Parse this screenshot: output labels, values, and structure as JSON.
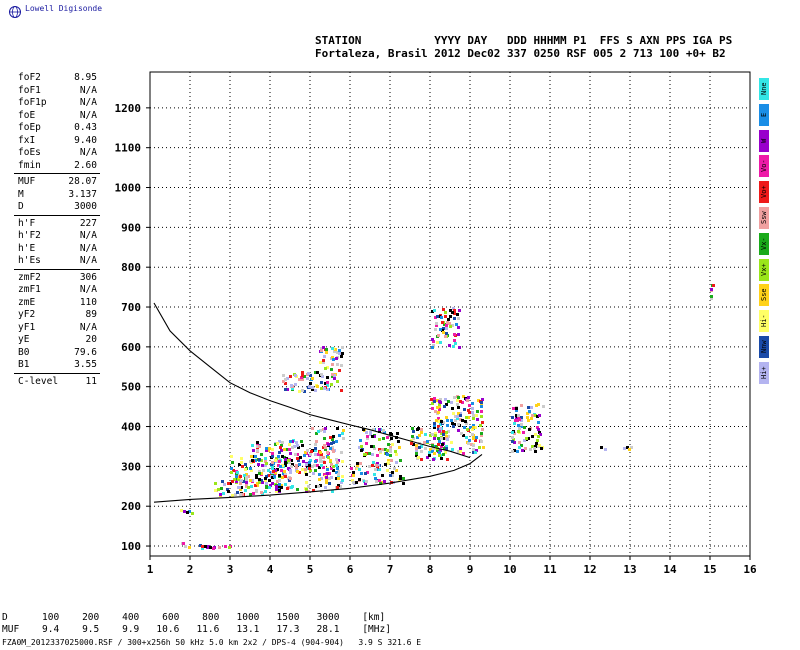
{
  "header": {
    "logo_text": "Lowell Digisonde",
    "station_title": "STATION           YYYY DAY   DDD HHHMM P1  FFS S AXN PPS IGA PS",
    "station_values": "Fortaleza, Brasil 2012 Dec02 337 0250 RSF 005 2 713 100 +0+ B2"
  },
  "params": [
    {
      "name": "foF2",
      "value": "8.95"
    },
    {
      "name": "foF1",
      "value": "N/A"
    },
    {
      "name": "foF1p",
      "value": "N/A"
    },
    {
      "name": "foE",
      "value": "N/A"
    },
    {
      "name": "foEp",
      "value": "0.43"
    },
    {
      "name": "fxI",
      "value": "9.40"
    },
    {
      "name": "foEs",
      "value": "N/A"
    },
    {
      "name": "fmin",
      "value": "2.60"
    },
    {
      "name": "MUF",
      "value": "28.07"
    },
    {
      "name": "M",
      "value": "3.137"
    },
    {
      "name": "D",
      "value": "3000"
    },
    {
      "name": "h'F",
      "value": "227"
    },
    {
      "name": "h'F2",
      "value": "N/A"
    },
    {
      "name": "h'E",
      "value": "N/A"
    },
    {
      "name": "h'Es",
      "value": "N/A"
    },
    {
      "name": "zmF2",
      "value": "306"
    },
    {
      "name": "zmF1",
      "value": "N/A"
    },
    {
      "name": "zmE",
      "value": "110"
    },
    {
      "name": "yF2",
      "value": "89"
    },
    {
      "name": "yF1",
      "value": "N/A"
    },
    {
      "name": "yE",
      "value": "20"
    },
    {
      "name": "B0",
      "value": "79.6"
    },
    {
      "name": "B1",
      "value": "3.55"
    },
    {
      "name": "C-level",
      "value": "11"
    }
  ],
  "legend": [
    {
      "label": "Nne",
      "color": "#33e6e6"
    },
    {
      "label": "E",
      "color": "#1a8ee6"
    },
    {
      "label": "W",
      "color": "#9900cc"
    },
    {
      "label": "Vo-",
      "color": "#ee1aa8"
    },
    {
      "label": "Vo+",
      "color": "#ee1a1a"
    },
    {
      "label": "Ssw",
      "color": "#f0a0a0"
    },
    {
      "label": "Vx-",
      "color": "#1aaa1a"
    },
    {
      "label": "Vx+",
      "color": "#9ae61a"
    },
    {
      "label": "Sse",
      "color": "#ffd21a"
    },
    {
      "label": "Hi-",
      "color": "#ffff66"
    },
    {
      "label": "Nnw",
      "color": "#1a4aa8"
    },
    {
      "label": "Hi+",
      "color": "#b4b4f0"
    }
  ],
  "chart_data": {
    "type": "scatter",
    "x_ticks": [
      "1",
      "2",
      "3",
      "4",
      "5",
      "6",
      "7",
      "8",
      "9",
      "10",
      "11",
      "12",
      "13",
      "14",
      "15",
      "16"
    ],
    "y_ticks": [
      "100",
      "200",
      "300",
      "400",
      "500",
      "600",
      "700",
      "800",
      "900",
      "1000",
      "1100",
      "1200"
    ],
    "xlim": [
      1,
      16
    ],
    "ylim": [
      75,
      1290
    ],
    "grid": true,
    "profile_curve": {
      "x": [
        1.1,
        2,
        3,
        4,
        5,
        6,
        7,
        8,
        8.6,
        9,
        9.3
      ],
      "y": [
        210,
        217,
        222,
        228,
        236,
        245,
        258,
        275,
        290,
        307,
        330
      ]
    },
    "virtual_height_curve": {
      "x": [
        1.1,
        1.5,
        2,
        2.5,
        3,
        3.5,
        4,
        4.5,
        5,
        5.5,
        6,
        6.5,
        7,
        7.5,
        8,
        8.5,
        9
      ],
      "y": [
        710,
        640,
        590,
        550,
        510,
        485,
        465,
        448,
        430,
        417,
        404,
        392,
        378,
        364,
        350,
        338,
        322
      ]
    },
    "traces": [
      {
        "xmin": 1.7,
        "xmax": 2.2,
        "ymin": 185,
        "ymax": 195
      },
      {
        "xmin": 1.7,
        "xmax": 3.0,
        "ymin": 95,
        "ymax": 110
      },
      {
        "xmin": 2.6,
        "xmax": 4.0,
        "ymin": 230,
        "ymax": 270
      },
      {
        "xmin": 3.0,
        "xmax": 4.5,
        "ymin": 250,
        "ymax": 330
      },
      {
        "xmin": 3.5,
        "xmax": 5.0,
        "ymin": 300,
        "ymax": 370
      },
      {
        "xmin": 4.0,
        "xmax": 5.8,
        "ymin": 240,
        "ymax": 300
      },
      {
        "xmin": 5.0,
        "xmax": 5.8,
        "ymin": 300,
        "ymax": 400
      },
      {
        "xmin": 6.0,
        "xmax": 7.3,
        "ymin": 260,
        "ymax": 320
      },
      {
        "xmin": 6.2,
        "xmax": 7.2,
        "ymin": 330,
        "ymax": 400
      },
      {
        "xmin": 7.5,
        "xmax": 8.4,
        "ymin": 320,
        "ymax": 400
      },
      {
        "xmin": 8.0,
        "xmax": 9.3,
        "ymin": 330,
        "ymax": 480
      },
      {
        "xmin": 4.3,
        "xmax": 5.8,
        "ymin": 490,
        "ymax": 540
      },
      {
        "xmin": 5.2,
        "xmax": 5.8,
        "ymin": 540,
        "ymax": 610
      },
      {
        "xmin": 8.0,
        "xmax": 8.7,
        "ymin": 600,
        "ymax": 700
      },
      {
        "xmin": 10.0,
        "xmax": 10.8,
        "ymin": 340,
        "ymax": 460
      },
      {
        "xmin": 12.2,
        "xmax": 13.0,
        "ymin": 345,
        "ymax": 355
      },
      {
        "xmin": 15.0,
        "xmax": 15.05,
        "ymin": 720,
        "ymax": 760
      }
    ]
  },
  "bottom": {
    "line1": "D      100    200    400    600    800   1000   1500   3000    [km]",
    "line2": "MUF    9.4    9.5    9.9   10.6   11.6   13.1   17.3   28.1    [MHz]",
    "footer": "FZA0M_2012337025000.RSF / 300+x256h 50 kHz 5.0 km 2x2 / DPS-4 (904-904)   3.9 S 321.6 E"
  }
}
